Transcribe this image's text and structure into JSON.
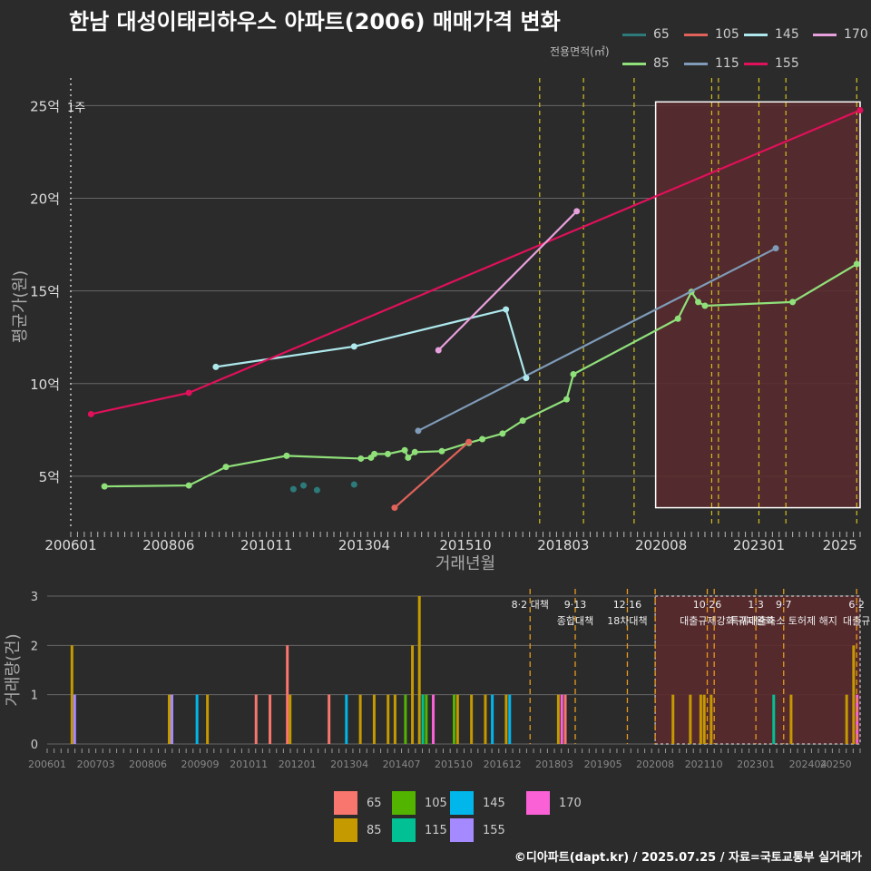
{
  "title": "한남 대성이태리하우스 아파트(2006) 매매가격 변화",
  "footer": "©디아파트(dapt.kr) / 2025.07.25 / 자료=국토교통부 실거래가",
  "legend_title": "전용면적(㎡)",
  "colors": {
    "bg": "#2b2b2b",
    "grid": "#666666",
    "vline": "#d4c01e",
    "policy_line": "#e69a1c",
    "highlight_fill": "#5a2a2e",
    "top": {
      "65": "#2c7a7a",
      "85": "#90e07a",
      "105": "#e0625a",
      "115": "#7f9bb8",
      "145": "#aee8ec",
      "155": "#e0105a",
      "170": "#e8a0dc"
    },
    "bottom": {
      "65": "#f8766d",
      "85": "#c49a00",
      "105": "#53b400",
      "115": "#00c094",
      "145": "#00b6eb",
      "155": "#a58aff",
      "170": "#fb61d7"
    }
  },
  "chart_data": [
    {
      "type": "line",
      "xlabel": "거래년월",
      "ylabel": "평균가(원)",
      "x_ticks": [
        "200601",
        "200806",
        "201011",
        "201304",
        "201510",
        "201803",
        "202008",
        "202301",
        "2025"
      ],
      "y_ticks": [
        "5억",
        "10억",
        "15억",
        "20억",
        "25억"
      ],
      "y_tick_values": [
        5,
        10,
        15,
        20,
        25
      ],
      "ylim": [
        2.3,
        26
      ],
      "xlim": [
        "2006-01",
        "2025-07"
      ],
      "corner_label": "1주",
      "vlines": [
        "2017-08",
        "2018-09",
        "2019-12",
        "2021-11",
        "2022-01",
        "2023-01",
        "2023-09",
        "2025-06"
      ],
      "highlight": {
        "from": "2020-08",
        "to": "2025-07",
        "y_from": 3.3,
        "y_to": 25.2
      },
      "series": [
        {
          "name": "65",
          "points": [
            [
              "2011-07",
              4.3
            ],
            [
              "2011-10",
              4.5
            ],
            [
              "2012-02",
              4.25
            ],
            [
              "2013-01",
              4.55
            ]
          ],
          "connect": false
        },
        {
          "name": "85",
          "points": [
            [
              "2006-11",
              4.45
            ],
            [
              "2008-12",
              4.5
            ],
            [
              "2009-11",
              5.5
            ],
            [
              "2011-05",
              6.1
            ],
            [
              "2013-03",
              5.95
            ],
            [
              "2013-06",
              6.0
            ],
            [
              "2013-07",
              6.2
            ],
            [
              "2013-11",
              6.2
            ],
            [
              "2014-04",
              6.4
            ],
            [
              "2014-05",
              6.0
            ],
            [
              "2014-07",
              6.3
            ],
            [
              "2015-03",
              6.35
            ],
            [
              "2015-11",
              6.8
            ],
            [
              "2016-03",
              7.0
            ],
            [
              "2016-09",
              7.3
            ],
            [
              "2017-03",
              8.0
            ],
            [
              "2018-04",
              9.15
            ],
            [
              "2018-06",
              10.5
            ],
            [
              "2021-01",
              13.5
            ],
            [
              "2021-05",
              14.95
            ],
            [
              "2021-07",
              14.4
            ],
            [
              "2021-09",
              14.2
            ],
            [
              "2023-11",
              14.4
            ],
            [
              "2025-06",
              16.45
            ]
          ]
        },
        {
          "name": "105",
          "points": [
            [
              "2014-01",
              3.3
            ],
            [
              "2015-11",
              6.85
            ]
          ]
        },
        {
          "name": "115",
          "points": [
            [
              "2014-08",
              7.45
            ],
            [
              "2023-06",
              17.3
            ]
          ]
        },
        {
          "name": "145",
          "points": [
            [
              "2009-08",
              10.9
            ],
            [
              "2013-01",
              12.0
            ],
            [
              "2016-10",
              14.0
            ],
            [
              "2017-04",
              10.3
            ]
          ]
        },
        {
          "name": "155",
          "points": [
            [
              "2006-07",
              8.35
            ],
            [
              "2008-12",
              9.5
            ],
            [
              "2025-07",
              24.75
            ]
          ]
        },
        {
          "name": "170",
          "points": [
            [
              "2015-02",
              11.8
            ],
            [
              "2018-07",
              19.3
            ]
          ]
        }
      ]
    },
    {
      "type": "bar",
      "ylabel": "거래량(건)",
      "ylim": [
        0,
        3
      ],
      "y_ticks": [
        "0",
        "1",
        "2",
        "3"
      ],
      "x_ticks": [
        "200601",
        "200703",
        "200806",
        "200909",
        "201011",
        "201201",
        "201304",
        "201407",
        "201510",
        "201612",
        "201803",
        "201905",
        "202008",
        "202110",
        "202301",
        "202404",
        "20250"
      ],
      "highlight": {
        "from": "2020-08",
        "to": "2025-07"
      },
      "policies": [
        {
          "date": "2017-08",
          "label": "8·2 대책",
          "line2": ""
        },
        {
          "date": "2018-09",
          "label": "9·13",
          "line2": "종합대책"
        },
        {
          "date": "2019-12",
          "label": "12·16",
          "line2": "18차대책"
        },
        {
          "date": "2020-08",
          "label": "",
          "line2": ""
        },
        {
          "date": "2021-11",
          "label": "10·26",
          "line2": "대출규제강화"
        },
        {
          "date": "2022-01",
          "label": "",
          "line2": ""
        },
        {
          "date": "2023-01",
          "label": "1·3",
          "line2": "규제완화"
        },
        {
          "date": "2023-09",
          "label": "9·7",
          "line2": "특례대출축소 토허제 해지"
        },
        {
          "date": "2025-06",
          "label": "6·2",
          "line2": "대출규"
        }
      ],
      "bars": [
        {
          "date": "2006-08",
          "series": "85",
          "count": 2
        },
        {
          "date": "2006-08",
          "series": "155",
          "count": 1
        },
        {
          "date": "2008-12",
          "series": "85",
          "count": 1
        },
        {
          "date": "2008-12",
          "series": "155",
          "count": 1
        },
        {
          "date": "2009-08",
          "series": "145",
          "count": 1
        },
        {
          "date": "2009-11",
          "series": "85",
          "count": 1
        },
        {
          "date": "2011-01",
          "series": "65",
          "count": 1
        },
        {
          "date": "2011-05",
          "series": "65",
          "count": 1
        },
        {
          "date": "2011-10",
          "series": "65",
          "count": 2
        },
        {
          "date": "2011-10",
          "series": "85",
          "count": 1
        },
        {
          "date": "2012-10",
          "series": "65",
          "count": 1
        },
        {
          "date": "2013-03",
          "series": "145",
          "count": 1
        },
        {
          "date": "2013-07",
          "series": "85",
          "count": 1
        },
        {
          "date": "2013-11",
          "series": "85",
          "count": 1
        },
        {
          "date": "2014-03",
          "series": "85",
          "count": 1
        },
        {
          "date": "2014-05",
          "series": "85",
          "count": 1
        },
        {
          "date": "2014-08",
          "series": "105",
          "count": 1
        },
        {
          "date": "2014-10",
          "series": "85",
          "count": 2
        },
        {
          "date": "2014-12",
          "series": "85",
          "count": 3
        },
        {
          "date": "2015-01",
          "series": "115",
          "count": 1
        },
        {
          "date": "2015-02",
          "series": "105",
          "count": 1
        },
        {
          "date": "2015-04",
          "series": "170",
          "count": 1
        },
        {
          "date": "2015-10",
          "series": "105",
          "count": 1
        },
        {
          "date": "2015-11",
          "series": "85",
          "count": 1
        },
        {
          "date": "2016-03",
          "series": "85",
          "count": 1
        },
        {
          "date": "2016-07",
          "series": "85",
          "count": 1
        },
        {
          "date": "2016-09",
          "series": "145",
          "count": 1
        },
        {
          "date": "2017-01",
          "series": "85",
          "count": 1
        },
        {
          "date": "2017-02",
          "series": "145",
          "count": 1
        },
        {
          "date": "2018-04",
          "series": "85",
          "count": 1
        },
        {
          "date": "2018-05",
          "series": "170",
          "count": 1
        },
        {
          "date": "2018-06",
          "series": "65",
          "count": 1
        },
        {
          "date": "2021-01",
          "series": "85",
          "count": 1
        },
        {
          "date": "2021-06",
          "series": "85",
          "count": 1
        },
        {
          "date": "2021-09",
          "series": "85",
          "count": 1
        },
        {
          "date": "2021-10",
          "series": "85",
          "count": 1
        },
        {
          "date": "2021-12",
          "series": "85",
          "count": 1
        },
        {
          "date": "2023-06",
          "series": "115",
          "count": 1
        },
        {
          "date": "2023-11",
          "series": "85",
          "count": 1
        },
        {
          "date": "2025-03",
          "series": "85",
          "count": 1
        },
        {
          "date": "2025-05",
          "series": "85",
          "count": 2
        },
        {
          "date": "2025-06",
          "series": "170",
          "count": 1
        }
      ]
    }
  ],
  "legend_order": [
    "65",
    "85",
    "105",
    "115",
    "145",
    "155",
    "170"
  ]
}
